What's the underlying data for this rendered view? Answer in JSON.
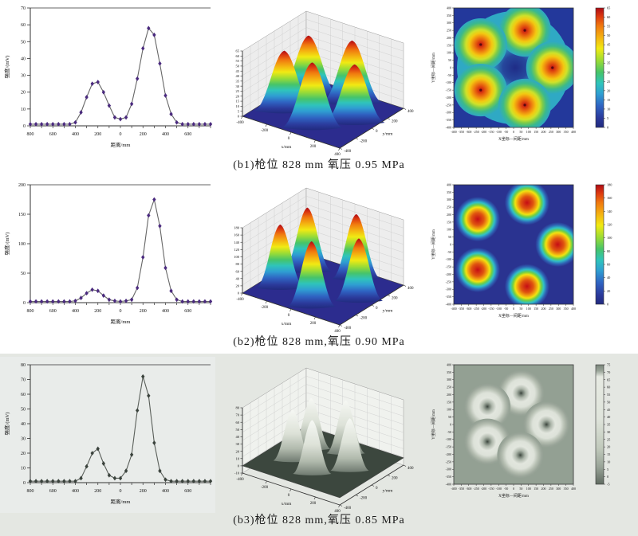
{
  "figure": {
    "captions": [
      "(b1)枪位 828 mm 氧压 0.95 MPa",
      "(b2)枪位 828 mm,氧压 0.90 MPa",
      "(b3)枪位 828 mm,氧压 0.85 MPa"
    ]
  },
  "colors": {
    "marker_purple": "#4a2a7e",
    "row3_band_bg": "#e4e7e2",
    "contour_bg_blue": "#23389b",
    "contour_bg_navy": "#2a3390",
    "contour_bg_gray": "#93a093",
    "surface_floor_blue": "#2c2c8e",
    "surface_floor_gray": "#3c473e"
  },
  "chart_data": [
    {
      "id": "b1-line",
      "type": "line",
      "xlabel": "距离/mm",
      "ylabel": "强度/(mV)",
      "xlim": [
        -800,
        800
      ],
      "ylim": [
        0,
        70
      ],
      "yticks": [
        0,
        10,
        20,
        30,
        40,
        50,
        60,
        70
      ],
      "xticks": [
        -800,
        -600,
        -400,
        -200,
        0,
        200,
        400,
        600
      ],
      "xtick_minor": 100,
      "x": [
        -800,
        -750,
        -700,
        -650,
        -600,
        -550,
        -500,
        -450,
        -400,
        -350,
        -300,
        -250,
        -200,
        -150,
        -100,
        -50,
        0,
        50,
        100,
        150,
        200,
        250,
        300,
        350,
        400,
        450,
        500,
        550,
        600,
        650,
        700,
        750,
        800
      ],
      "y": [
        1,
        1,
        1,
        1,
        1,
        1,
        1,
        1,
        2,
        8,
        17,
        25,
        26,
        20,
        12,
        5,
        4,
        5,
        13,
        28,
        46,
        58,
        54,
        37,
        18,
        7,
        2,
        1,
        1,
        1,
        1,
        1,
        1
      ],
      "marker_color": "#4a2a7e",
      "line_color": "#666666",
      "bg": "none"
    },
    {
      "id": "b1-surface",
      "type": "surface3d",
      "xlabel": "x/mm",
      "ylabel": "y/mm",
      "xlim": [
        -400,
        400
      ],
      "ylim": [
        -400,
        400
      ],
      "zlim": [
        0,
        65
      ],
      "zticks": [
        0,
        5,
        10,
        15,
        20,
        25,
        30,
        35,
        40,
        45,
        50,
        55,
        60,
        65
      ],
      "xticks": [
        -400,
        -200,
        0,
        200,
        400
      ],
      "yticks": [
        -400,
        -200,
        0,
        200,
        400
      ],
      "peaks": [
        {
          "x": 75,
          "y": 250,
          "h": 62
        },
        {
          "x": -220,
          "y": 155,
          "h": 60
        },
        {
          "x": 260,
          "y": 0,
          "h": 58
        },
        {
          "x": -220,
          "y": -150,
          "h": 60
        },
        {
          "x": 75,
          "y": -250,
          "h": 65
        }
      ],
      "base_r": 38,
      "colormap": "jet",
      "floor_color": "#2c2c8e",
      "wall_color": "#ededed"
    },
    {
      "id": "b1-contour",
      "type": "contour",
      "style": "jet-broad",
      "xlabel": "X坐标—间距/mm",
      "ylabel": "Y坐标—间距/mm",
      "xlim": [
        -400,
        400
      ],
      "ylim": [
        -400,
        400
      ],
      "ticks": [
        -400,
        -350,
        -300,
        -250,
        -200,
        -150,
        -100,
        -50,
        0,
        50,
        100,
        150,
        200,
        250,
        300,
        350,
        400
      ],
      "peaks": [
        {
          "x": 75,
          "y": 250
        },
        {
          "x": -220,
          "y": 155
        },
        {
          "x": 260,
          "y": 0
        },
        {
          "x": -220,
          "y": -150
        },
        {
          "x": 75,
          "y": -250
        }
      ],
      "bg": "#23389b",
      "bar_colormap": "jet",
      "colorbar": {
        "min": 0,
        "max": 65,
        "ticks": [
          65,
          60,
          55,
          50,
          45,
          40,
          35,
          30,
          25,
          20,
          15,
          10,
          5,
          0
        ]
      }
    },
    {
      "id": "b2-line",
      "type": "line",
      "xlabel": "距离/mm",
      "ylabel": "强度/(mV)",
      "xlim": [
        -800,
        800
      ],
      "ylim": [
        0,
        200
      ],
      "yticks": [
        0,
        50,
        100,
        150,
        200
      ],
      "xticks": [
        -800,
        -600,
        -400,
        -200,
        0,
        200,
        400,
        600
      ],
      "xtick_minor": 100,
      "x": [
        -800,
        -750,
        -700,
        -650,
        -600,
        -550,
        -500,
        -450,
        -400,
        -350,
        -300,
        -250,
        -200,
        -150,
        -100,
        -50,
        0,
        50,
        100,
        150,
        200,
        250,
        300,
        350,
        400,
        450,
        500,
        550,
        600,
        650,
        700,
        750,
        800
      ],
      "y": [
        2,
        2,
        2,
        2,
        2,
        2,
        2,
        2,
        3,
        8,
        16,
        22,
        20,
        12,
        5,
        3,
        2,
        3,
        5,
        25,
        77,
        148,
        175,
        130,
        59,
        20,
        5,
        2,
        2,
        2,
        2,
        2,
        2
      ],
      "marker_color": "#4a2a7e",
      "line_color": "#666666",
      "bg": "none"
    },
    {
      "id": "b2-surface",
      "type": "surface3d",
      "xlabel": "x/mm",
      "ylabel": "y/mm",
      "xlim": [
        -400,
        400
      ],
      "ylim": [
        -400,
        400
      ],
      "zlim": [
        0,
        180
      ],
      "zticks": [
        0,
        20,
        40,
        60,
        80,
        100,
        120,
        140,
        160,
        180
      ],
      "xticks": [
        -400,
        -200,
        0,
        200,
        400
      ],
      "yticks": [
        -400,
        -200,
        0,
        200,
        400
      ],
      "peaks": [
        {
          "x": 90,
          "y": 280,
          "h": 178
        },
        {
          "x": -240,
          "y": 170,
          "h": 175
        },
        {
          "x": 295,
          "y": 0,
          "h": 172
        },
        {
          "x": -240,
          "y": -170,
          "h": 175
        },
        {
          "x": 90,
          "y": -280,
          "h": 180
        }
      ],
      "base_r": 30,
      "colormap": "jet",
      "floor_color": "#2c2c8e",
      "wall_color": "#ededed"
    },
    {
      "id": "b2-contour",
      "type": "contour",
      "style": "jet-blob",
      "xlabel": "X坐标—间距/mm",
      "ylabel": "Y坐标—间距/mm",
      "xlim": [
        -400,
        400
      ],
      "ylim": [
        -400,
        400
      ],
      "ticks": [
        -400,
        -350,
        -300,
        -250,
        -200,
        -150,
        -100,
        -50,
        0,
        50,
        100,
        150,
        200,
        250,
        300,
        350,
        400
      ],
      "peaks": [
        {
          "x": 90,
          "y": 280
        },
        {
          "x": -240,
          "y": 170
        },
        {
          "x": 295,
          "y": 0
        },
        {
          "x": -240,
          "y": -170
        },
        {
          "x": 90,
          "y": -280
        }
      ],
      "bg": "#2a3390",
      "bar_colormap": "jet",
      "colorbar": {
        "min": 0,
        "max": 180,
        "ticks": [
          180,
          160,
          140,
          120,
          100,
          80,
          60,
          40,
          20,
          0
        ]
      }
    },
    {
      "id": "b3-line",
      "type": "line",
      "xlabel": "距离/mm",
      "ylabel": "强度/(mV)",
      "xlim": [
        -800,
        800
      ],
      "ylim": [
        0,
        80
      ],
      "yticks": [
        0,
        10,
        20,
        30,
        40,
        50,
        60,
        70,
        80
      ],
      "xticks": [
        -800,
        -600,
        -400,
        -200,
        0,
        200,
        400,
        600
      ],
      "xtick_minor": 100,
      "x": [
        -800,
        -750,
        -700,
        -650,
        -600,
        -550,
        -500,
        -450,
        -400,
        -350,
        -300,
        -250,
        -200,
        -150,
        -100,
        -50,
        0,
        50,
        100,
        150,
        200,
        250,
        300,
        350,
        400,
        450,
        500,
        550,
        600,
        650,
        700,
        750,
        800
      ],
      "y": [
        1,
        1,
        1,
        1,
        1,
        1,
        1,
        1,
        1,
        3,
        11,
        20,
        23,
        13,
        5,
        3,
        3,
        8,
        19,
        49,
        72,
        59,
        27,
        8,
        2,
        1,
        1,
        1,
        1,
        1,
        1,
        1,
        1
      ],
      "marker_color": "#3a423c",
      "line_color": "#5a5f5a",
      "bg": "#e9ecea"
    },
    {
      "id": "b3-surface",
      "type": "surface3d",
      "xlabel": "x/mm",
      "ylabel": "y/mm",
      "xlim": [
        -400,
        400
      ],
      "ylim": [
        -400,
        400
      ],
      "zlim": [
        -10,
        80
      ],
      "zticks": [
        -10,
        0,
        10,
        20,
        30,
        40,
        50,
        60,
        70,
        80
      ],
      "xticks": [
        -400,
        -200,
        0,
        200,
        400
      ],
      "yticks": [
        -400,
        -200,
        0,
        200,
        400
      ],
      "peaks": [
        {
          "x": 50,
          "y": 210,
          "h": 73
        },
        {
          "x": -175,
          "y": 120,
          "h": 70
        },
        {
          "x": 220,
          "y": 0,
          "h": 72
        },
        {
          "x": -175,
          "y": -115,
          "h": 70
        },
        {
          "x": 45,
          "y": -205,
          "h": 74
        }
      ],
      "base_r": 24,
      "colormap": "gray",
      "floor_color": "#3c473e",
      "wall_color": "#f0f2ee"
    },
    {
      "id": "b3-contour",
      "type": "contour",
      "style": "gray-blob",
      "xlabel": "X坐标—间距/mm",
      "ylabel": "Y坐标—间距/mm",
      "xlim": [
        -400,
        400
      ],
      "ylim": [
        -400,
        400
      ],
      "ticks": [
        -400,
        -350,
        -300,
        -250,
        -200,
        -150,
        -100,
        -50,
        0,
        50,
        100,
        150,
        200,
        250,
        300,
        350,
        400
      ],
      "peaks": [
        {
          "x": 50,
          "y": 210
        },
        {
          "x": -175,
          "y": 120
        },
        {
          "x": 220,
          "y": 0
        },
        {
          "x": -175,
          "y": -115
        },
        {
          "x": 45,
          "y": -205
        }
      ],
      "bg": "#93a093",
      "bar_colormap": "gray",
      "colorbar": {
        "min": -5,
        "max": 75,
        "ticks": [
          75,
          70,
          65,
          60,
          55,
          50,
          45,
          40,
          35,
          30,
          25,
          20,
          15,
          10,
          5,
          0,
          -5
        ]
      }
    }
  ]
}
